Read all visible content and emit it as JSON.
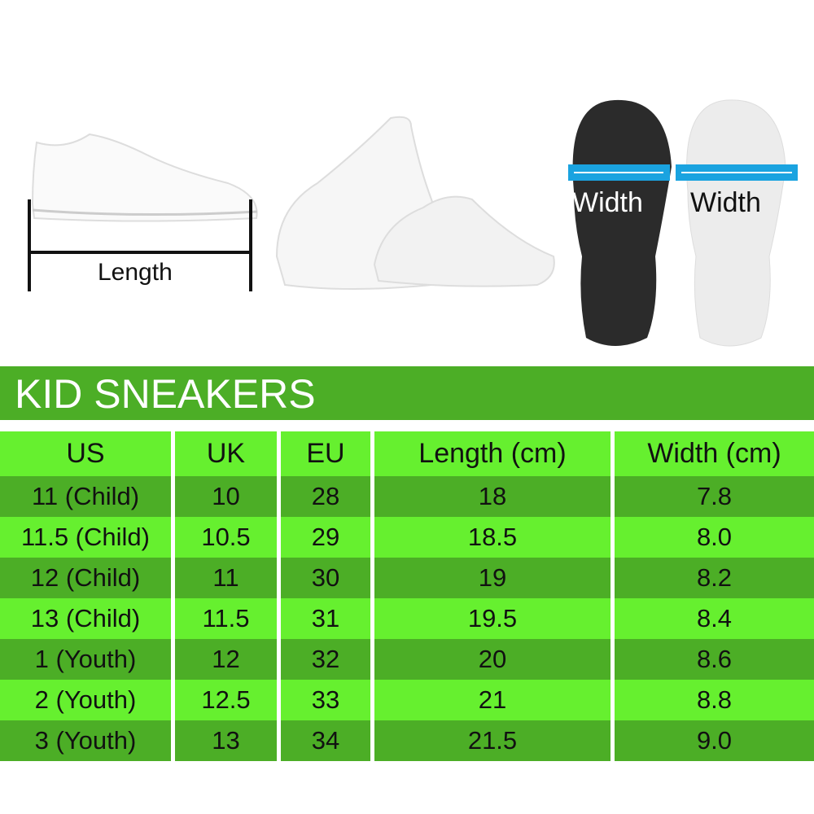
{
  "illustrations": {
    "length_label": "Length",
    "width_label_dark": "Width",
    "width_label_light": "Width",
    "arrow_color": "#1aa3e0"
  },
  "title": "KID SNEAKERS",
  "colors": {
    "banner": "#4cae26",
    "row_dark": "#4cae26",
    "row_light": "#66f02f"
  },
  "table": {
    "headers": [
      "US",
      "UK",
      "EU",
      "Length (cm)",
      "Width (cm)"
    ],
    "rows": [
      [
        "11 (Child)",
        "10",
        "28",
        "18",
        "7.8"
      ],
      [
        "11.5 (Child)",
        "10.5",
        "29",
        "18.5",
        "8.0"
      ],
      [
        "12 (Child)",
        "11",
        "30",
        "19",
        "8.2"
      ],
      [
        "13 (Child)",
        "11.5",
        "31",
        "19.5",
        "8.4"
      ],
      [
        "1 (Youth)",
        "12",
        "32",
        "20",
        "8.6"
      ],
      [
        "2 (Youth)",
        "12.5",
        "33",
        "21",
        "8.8"
      ],
      [
        "3 (Youth)",
        "13",
        "34",
        "21.5",
        "9.0"
      ]
    ]
  }
}
